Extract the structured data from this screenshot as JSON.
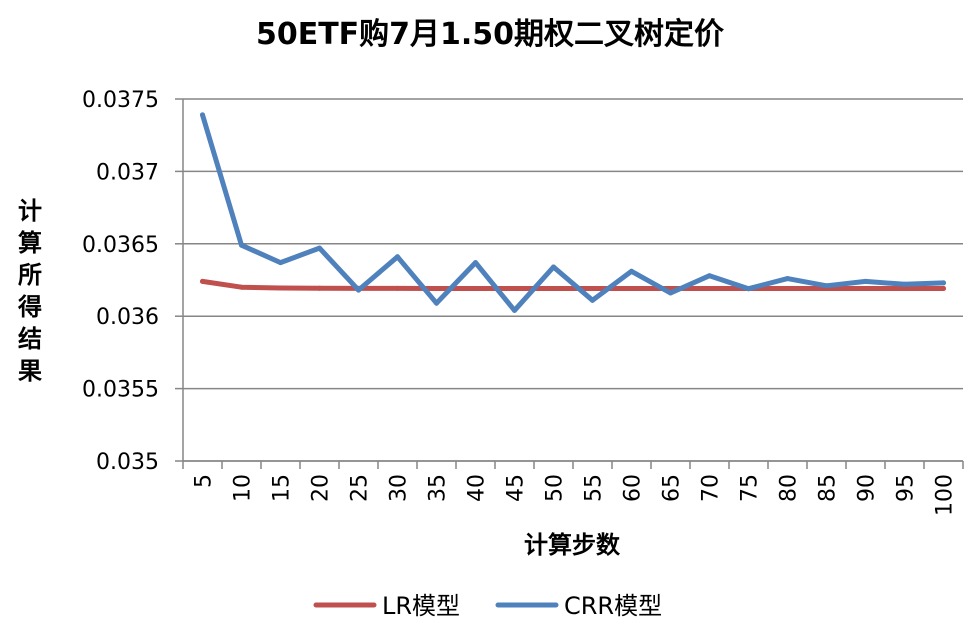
{
  "chart_data": {
    "type": "line",
    "title": "50ETF购7月1.50期权二叉树定价",
    "xlabel": "计算步数",
    "ylabel": "计算所得结果",
    "categories": [
      "5",
      "10",
      "15",
      "20",
      "25",
      "30",
      "35",
      "40",
      "45",
      "50",
      "55",
      "60",
      "65",
      "70",
      "75",
      "80",
      "85",
      "90",
      "95",
      "100"
    ],
    "ylim": [
      0.035,
      0.0375
    ],
    "yticks": [
      "0.035",
      "0.0355",
      "0.036",
      "0.0365",
      "0.037",
      "0.0375"
    ],
    "grid": true,
    "legend_position": "bottom",
    "series": [
      {
        "name": "LR模型",
        "color": "#C0504D",
        "values": [
          0.03624,
          0.0362,
          0.036195,
          0.036193,
          0.036192,
          0.036192,
          0.036191,
          0.036191,
          0.036191,
          0.036191,
          0.036191,
          0.036191,
          0.036191,
          0.036191,
          0.036191,
          0.036191,
          0.036191,
          0.036191,
          0.036191,
          0.036191
        ]
      },
      {
        "name": "CRR模型",
        "color": "#4F81BD",
        "values": [
          0.03739,
          0.03649,
          0.03637,
          0.03647,
          0.03618,
          0.03641,
          0.03609,
          0.03637,
          0.03604,
          0.03634,
          0.03611,
          0.03631,
          0.03616,
          0.03628,
          0.03619,
          0.03626,
          0.03621,
          0.03624,
          0.03622,
          0.03623
        ]
      }
    ]
  }
}
